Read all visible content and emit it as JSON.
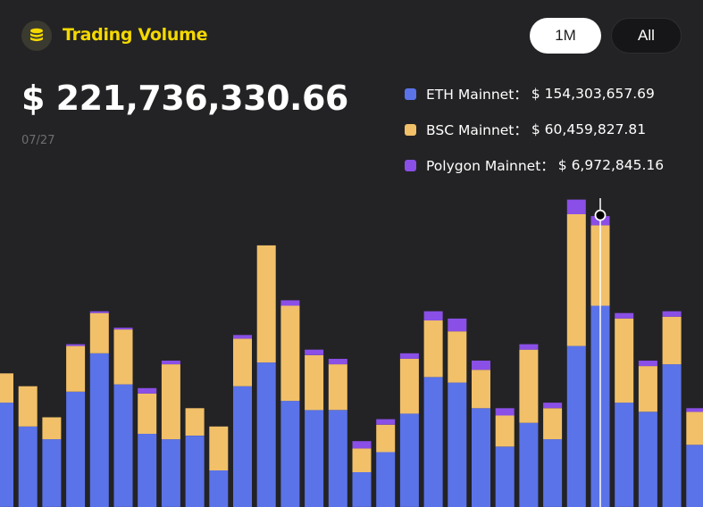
{
  "header": {
    "title": "Trading Volume",
    "logo_icon": "coin-stack-icon",
    "accent_color": "#f5d800"
  },
  "range_buttons": {
    "one_month": "1M",
    "all": "All",
    "active": "1M"
  },
  "summary": {
    "total_value": "$ 221,736,330.66",
    "selected_date": "07/27"
  },
  "legend": [
    {
      "name": "ETH Mainnet：",
      "value": "$ 154,303,657.69",
      "color": "#5b73e8"
    },
    {
      "name": "BSC Mainnet：",
      "value": "$ 60,459,827.81",
      "color": "#f1c069"
    },
    {
      "name": "Polygon Mainnet：",
      "value": "$ 6,972,845.16",
      "color": "#8a4fe6"
    }
  ],
  "chart_data": {
    "type": "bar",
    "stacked": true,
    "grid": false,
    "highlight_index": 25,
    "series": [
      {
        "name": "ETH Mainnet",
        "color": "#5b73e8",
        "values": [
          57,
          44,
          37,
          63,
          84,
          67,
          40,
          37,
          39,
          20,
          66,
          79,
          58,
          53,
          53,
          19,
          30,
          51,
          71,
          68,
          54,
          33,
          46,
          37,
          88,
          110,
          57,
          52,
          78,
          34
        ]
      },
      {
        "name": "BSC Mainnet",
        "color": "#f1c069",
        "values": [
          16,
          22,
          12,
          25,
          22,
          30,
          22,
          41,
          15,
          24,
          26,
          64,
          52,
          30,
          25,
          13,
          15,
          30,
          31,
          28,
          21,
          17,
          40,
          17,
          72,
          44,
          46,
          25,
          26,
          18
        ]
      },
      {
        "name": "Polygon Mainnet",
        "color": "#8a4fe6",
        "values": [
          0,
          0,
          0,
          1,
          1,
          1,
          3,
          2,
          0,
          0,
          2,
          0,
          3,
          3,
          3,
          4,
          3,
          3,
          5,
          7,
          5,
          4,
          3,
          3,
          8,
          5,
          3,
          3,
          3,
          2
        ]
      }
    ]
  }
}
